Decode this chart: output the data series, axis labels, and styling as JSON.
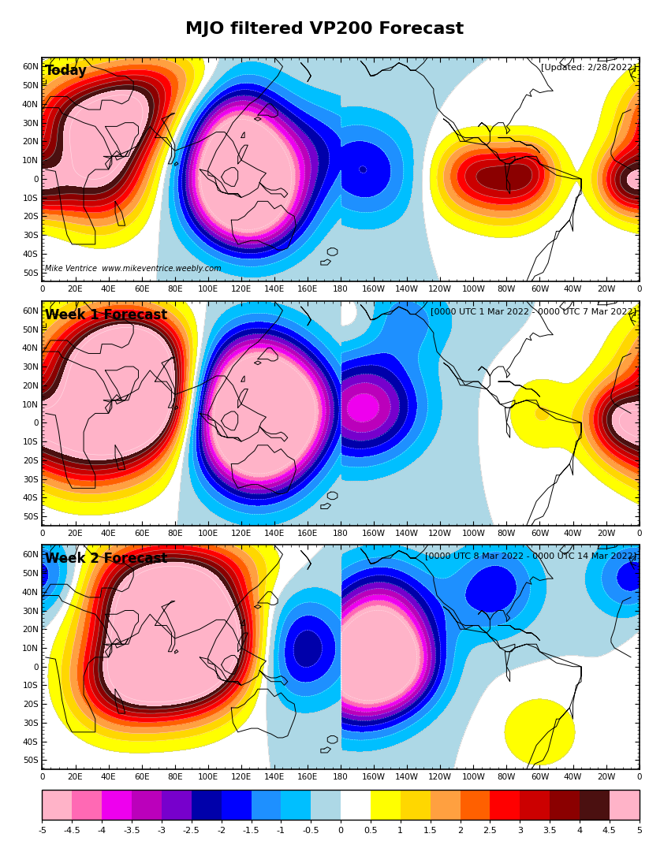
{
  "title": "MJO filtered VP200 Forecast",
  "panels": [
    {
      "label": "Today",
      "annotation": "[Updated: 2/28/2022]",
      "watermark": "Mike Ventrice  www.mikeventrice.weebly.com"
    },
    {
      "label": "Week 1 Forecast",
      "annotation": "[0000 UTC 1 Mar 2022 - 0000 UTC 7 Mar 2022]"
    },
    {
      "label": "Week 2 Forecast",
      "annotation": "[0000 UTC 8 Mar 2022 - 0000 UTC 14 Mar 2022]"
    }
  ],
  "colorbar_colors": [
    "#FFB3C8",
    "#FF69B4",
    "#EE00EE",
    "#BB00BB",
    "#7700CC",
    "#0000AA",
    "#0000FF",
    "#1E90FF",
    "#00BFFF",
    "#ADD8E6",
    "#FFFFFF",
    "#FFFF00",
    "#FFD700",
    "#FFA040",
    "#FF6000",
    "#FF0000",
    "#CC0000",
    "#8B0000",
    "#4B1010",
    "#FFB3C8"
  ],
  "lon_tick_labels": [
    "0",
    "20E",
    "40E",
    "60E",
    "80E",
    "100E",
    "120E",
    "140E",
    "160E",
    "180",
    "160W",
    "140W",
    "120W",
    "100W",
    "80W",
    "60W",
    "40W",
    "20W",
    "0"
  ],
  "lat_tick_labels": [
    "50S",
    "40S",
    "30S",
    "20S",
    "10S",
    "0",
    "10N",
    "20N",
    "30N",
    "40N",
    "50N",
    "60N"
  ]
}
